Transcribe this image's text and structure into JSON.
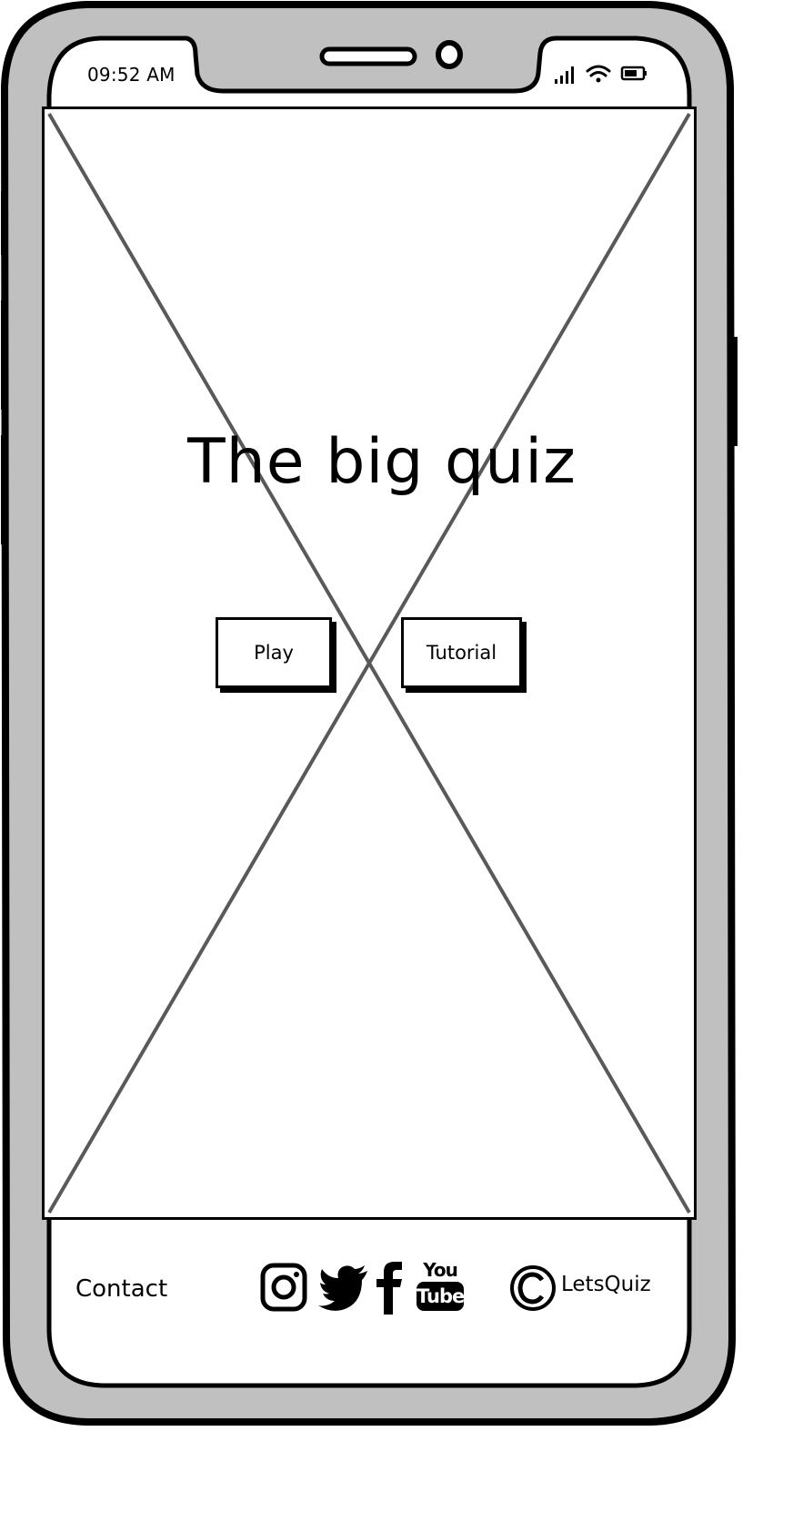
{
  "status_bar": {
    "time": "09:52 AM",
    "icons": [
      "signal-icon",
      "wifi-icon",
      "battery-icon"
    ]
  },
  "hero": {
    "title": "The big quiz",
    "image": "placeholder-image"
  },
  "buttons": {
    "play_label": "Play",
    "tutorial_label": "Tutorial"
  },
  "footer": {
    "contact_label": "Contact",
    "social_icons": [
      "instagram-icon",
      "twitter-icon",
      "facebook-icon",
      "youtube-icon"
    ],
    "youtube_text_top": "You",
    "youtube_text_bottom": "Tube",
    "copyright_symbol": "copyright-icon",
    "brand": "LetsQuiz"
  },
  "colors": {
    "frame_gray": "#c0c0c0",
    "placeholder_line": "#595959",
    "ink": "#000000",
    "screen": "#ffffff"
  }
}
